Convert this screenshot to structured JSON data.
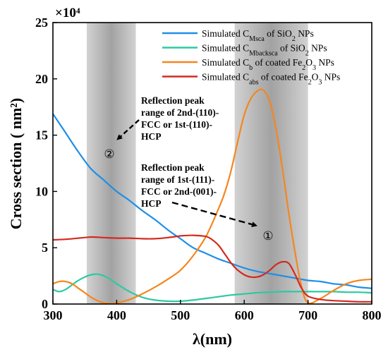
{
  "chart_data": {
    "type": "line",
    "title": "",
    "xlabel": "λ(nm)",
    "ylabel": "Cross section ( nm²)",
    "y_multiplier": "×10⁴",
    "xlim": [
      300,
      800
    ],
    "ylim": [
      0,
      25
    ],
    "x_ticks": [
      300,
      400,
      500,
      600,
      700,
      800
    ],
    "y_ticks": [
      0,
      5,
      10,
      15,
      20,
      25
    ],
    "legend_position": "top-right",
    "highlight_bands": [
      {
        "x_range": [
          353,
          430
        ]
      },
      {
        "x_range": [
          585,
          700
        ]
      }
    ],
    "series": [
      {
        "name": "Simulated CMsca of SiO₂ NPs",
        "label_main": "Simulated C",
        "label_sub": "Msca",
        "label_mid": " of  SiO",
        "label_sub2": "2",
        "label_end": " NPs",
        "color": "#1f8fe8",
        "x": [
          300,
          320,
          340,
          360,
          380,
          400,
          420,
          440,
          460,
          480,
          500,
          520,
          540,
          560,
          580,
          600,
          620,
          640,
          660,
          680,
          700,
          720,
          740,
          760,
          780,
          800
        ],
        "y": [
          16.9,
          15.2,
          13.5,
          12.0,
          11.0,
          10.0,
          9.2,
          8.3,
          7.5,
          6.6,
          5.8,
          5.0,
          4.5,
          4.0,
          3.6,
          3.2,
          2.9,
          2.7,
          2.5,
          2.3,
          2.1,
          2.0,
          1.8,
          1.7,
          1.5,
          1.4
        ]
      },
      {
        "name": "Simulated CMbacksca of SiO₂ NPs",
        "label_main": "Simulated C",
        "label_sub": "Mbacksca",
        "label_mid": " of  SiO",
        "label_sub2": "2",
        "label_end": " NPs",
        "color": "#2ec9a0",
        "x": [
          300,
          310,
          320,
          330,
          340,
          350,
          360,
          370,
          380,
          390,
          400,
          420,
          440,
          460,
          480,
          500,
          520,
          540,
          560,
          580,
          600,
          620,
          640,
          660,
          680,
          700,
          720,
          740,
          760,
          780,
          800
        ],
        "y": [
          1.3,
          1.1,
          1.3,
          1.7,
          2.1,
          2.4,
          2.6,
          2.65,
          2.5,
          2.2,
          1.8,
          1.1,
          0.6,
          0.35,
          0.25,
          0.25,
          0.35,
          0.5,
          0.65,
          0.8,
          0.9,
          1.0,
          1.05,
          1.1,
          1.1,
          1.1,
          1.1,
          1.1,
          1.05,
          1.05,
          1.0
        ]
      },
      {
        "name": "Simulated Cb of coated Fe₂O₃ NPs",
        "label_main": "Simulated C",
        "label_sub": "b",
        "label_mid": " of coated Fe",
        "label_sub2": "2",
        "label_mid2": "O",
        "label_sub3": "3",
        "label_end": " NPs",
        "color": "#f5861f",
        "x": [
          300,
          310,
          320,
          330,
          340,
          350,
          360,
          370,
          380,
          390,
          400,
          420,
          440,
          460,
          480,
          500,
          520,
          540,
          560,
          570,
          580,
          590,
          600,
          610,
          620,
          630,
          640,
          650,
          660,
          670,
          680,
          690,
          700,
          720,
          740,
          760,
          780,
          800
        ],
        "y": [
          1.8,
          2.0,
          2.0,
          1.8,
          1.4,
          1.0,
          0.6,
          0.3,
          0.1,
          0.05,
          0.1,
          0.4,
          0.9,
          1.5,
          2.2,
          3.0,
          4.3,
          6.0,
          8.5,
          10.0,
          12.0,
          14.5,
          16.8,
          18.2,
          18.9,
          19.0,
          18.0,
          15.5,
          12.0,
          8.0,
          4.5,
          1.5,
          0.1,
          0.5,
          1.2,
          1.8,
          2.1,
          2.2
        ]
      },
      {
        "name": "Simulated Cabs of coated Fe₂O₃ NPs",
        "label_main": "Simulated C",
        "label_sub": "abs",
        "label_mid": " of coated Fe",
        "label_sub2": "2",
        "label_mid2": "O",
        "label_sub3": "3",
        "label_end": " NPs",
        "color": "#d42a1f",
        "x": [
          300,
          320,
          340,
          360,
          380,
          400,
          420,
          440,
          460,
          480,
          500,
          520,
          540,
          550,
          560,
          570,
          580,
          590,
          600,
          610,
          620,
          630,
          640,
          650,
          660,
          670,
          680,
          690,
          700,
          720,
          740,
          760,
          780,
          800
        ],
        "y": [
          5.7,
          5.75,
          5.85,
          5.95,
          5.9,
          5.85,
          5.85,
          5.8,
          5.8,
          5.9,
          6.05,
          6.1,
          6.0,
          5.7,
          5.2,
          4.4,
          3.6,
          3.0,
          2.6,
          2.4,
          2.4,
          2.6,
          3.0,
          3.5,
          3.75,
          3.6,
          2.6,
          1.4,
          0.7,
          0.4,
          0.3,
          0.25,
          0.2,
          0.2
        ]
      }
    ],
    "annotations": [
      {
        "lines": [
          "Reflection peak",
          "range of 2nd-(110)-",
          "FCC or 1st-(110)-",
          "HCP"
        ],
        "marker": "②"
      },
      {
        "lines": [
          "Reflection peak",
          "range of 1st-(111)-",
          "FCC or 2nd-(001)-",
          "HCP"
        ],
        "marker": "①"
      }
    ]
  }
}
